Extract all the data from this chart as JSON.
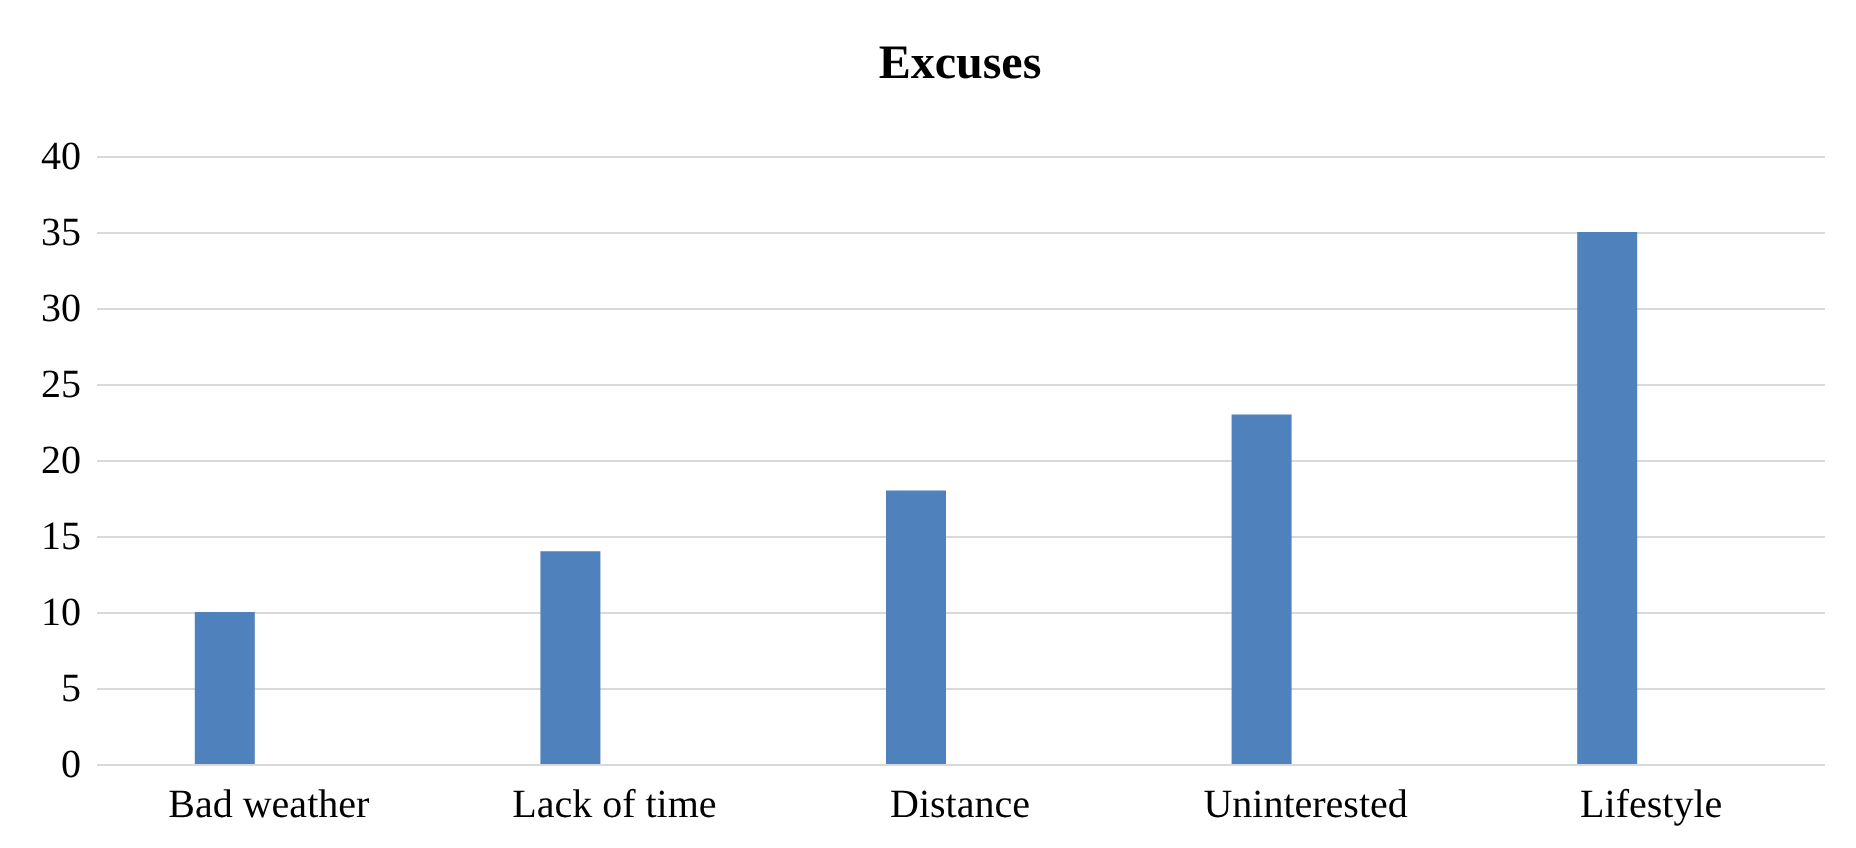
{
  "chart_data": {
    "type": "bar",
    "title": "Excuses",
    "categories": [
      "Bad weather",
      "Lack of time",
      "Distance",
      "Uninterested",
      "Lifestyle"
    ],
    "values": [
      10,
      14,
      18,
      23,
      35
    ],
    "color": "#4f81bd",
    "ylim": [
      0,
      40
    ],
    "yticks": [
      0,
      5,
      10,
      15,
      20,
      25,
      30,
      35,
      40
    ],
    "grid": "y"
  }
}
